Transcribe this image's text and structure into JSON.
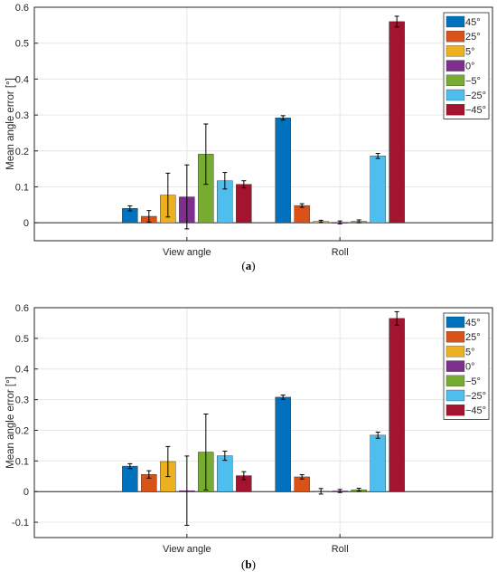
{
  "figure": {
    "caption_a": "a",
    "caption_b": "b"
  },
  "chart_data": [
    {
      "type": "bar",
      "panel": "a",
      "ylabel": "Mean angle error [°]",
      "xlabel": "",
      "categories": [
        "View angle",
        "Roll"
      ],
      "ylim": [
        -0.05,
        0.6
      ],
      "yticks": [
        "0",
        "0.1",
        "0.2",
        "0.3",
        "0.4",
        "0.5",
        "0.6"
      ],
      "ytick_values": [
        0,
        0.1,
        0.2,
        0.3,
        0.4,
        0.5,
        0.6
      ],
      "grid": true,
      "legend_position": "top-right",
      "series": [
        {
          "name": "45°",
          "color": "#0072BD",
          "values": [
            0.04,
            0.292
          ],
          "errors": [
            0.007,
            0.006
          ]
        },
        {
          "name": "25°",
          "color": "#D95319",
          "values": [
            0.018,
            0.048
          ],
          "errors": [
            0.016,
            0.005
          ]
        },
        {
          "name": "5°",
          "color": "#EDB120",
          "values": [
            0.077,
            0.004
          ],
          "errors": [
            0.061,
            0.003
          ]
        },
        {
          "name": "0°",
          "color": "#7E2F8E",
          "values": [
            0.072,
            0.001
          ],
          "errors": [
            0.089,
            0.004
          ]
        },
        {
          "name": "−5°",
          "color": "#77AC30",
          "values": [
            0.191,
            0.004
          ],
          "errors": [
            0.084,
            0.004
          ]
        },
        {
          "name": "−25°",
          "color": "#4DBEEE",
          "values": [
            0.117,
            0.186
          ],
          "errors": [
            0.023,
            0.007
          ]
        },
        {
          "name": "−45°",
          "color": "#A2142F",
          "values": [
            0.107,
            0.56
          ],
          "errors": [
            0.01,
            0.015
          ]
        }
      ]
    },
    {
      "type": "bar",
      "panel": "b",
      "ylabel": "Mean angle error [°]",
      "xlabel": "",
      "categories": [
        "View angle",
        "Roll"
      ],
      "ylim": [
        -0.15,
        0.6
      ],
      "yticks": [
        "-0.1",
        "0",
        "0.1",
        "0.2",
        "0.3",
        "0.4",
        "0.5",
        "0.6"
      ],
      "ytick_values": [
        -0.1,
        0,
        0.1,
        0.2,
        0.3,
        0.4,
        0.5,
        0.6
      ],
      "grid": true,
      "legend_position": "top-right",
      "series": [
        {
          "name": "45°",
          "color": "#0072BD",
          "values": [
            0.083,
            0.308
          ],
          "errors": [
            0.008,
            0.007
          ]
        },
        {
          "name": "25°",
          "color": "#D95319",
          "values": [
            0.056,
            0.048
          ],
          "errors": [
            0.012,
            0.007
          ]
        },
        {
          "name": "5°",
          "color": "#EDB120",
          "values": [
            0.098,
            0.001
          ],
          "errors": [
            0.049,
            0.009
          ]
        },
        {
          "name": "0°",
          "color": "#7E2F8E",
          "values": [
            0.003,
            0.002
          ],
          "errors": [
            0.113,
            0.005
          ]
        },
        {
          "name": "−5°",
          "color": "#77AC30",
          "values": [
            0.129,
            0.006
          ],
          "errors": [
            0.124,
            0.005
          ]
        },
        {
          "name": "−25°",
          "color": "#4DBEEE",
          "values": [
            0.117,
            0.184
          ],
          "errors": [
            0.015,
            0.01
          ]
        },
        {
          "name": "−45°",
          "color": "#A2142F",
          "values": [
            0.052,
            0.565
          ],
          "errors": [
            0.013,
            0.022
          ]
        }
      ]
    }
  ]
}
